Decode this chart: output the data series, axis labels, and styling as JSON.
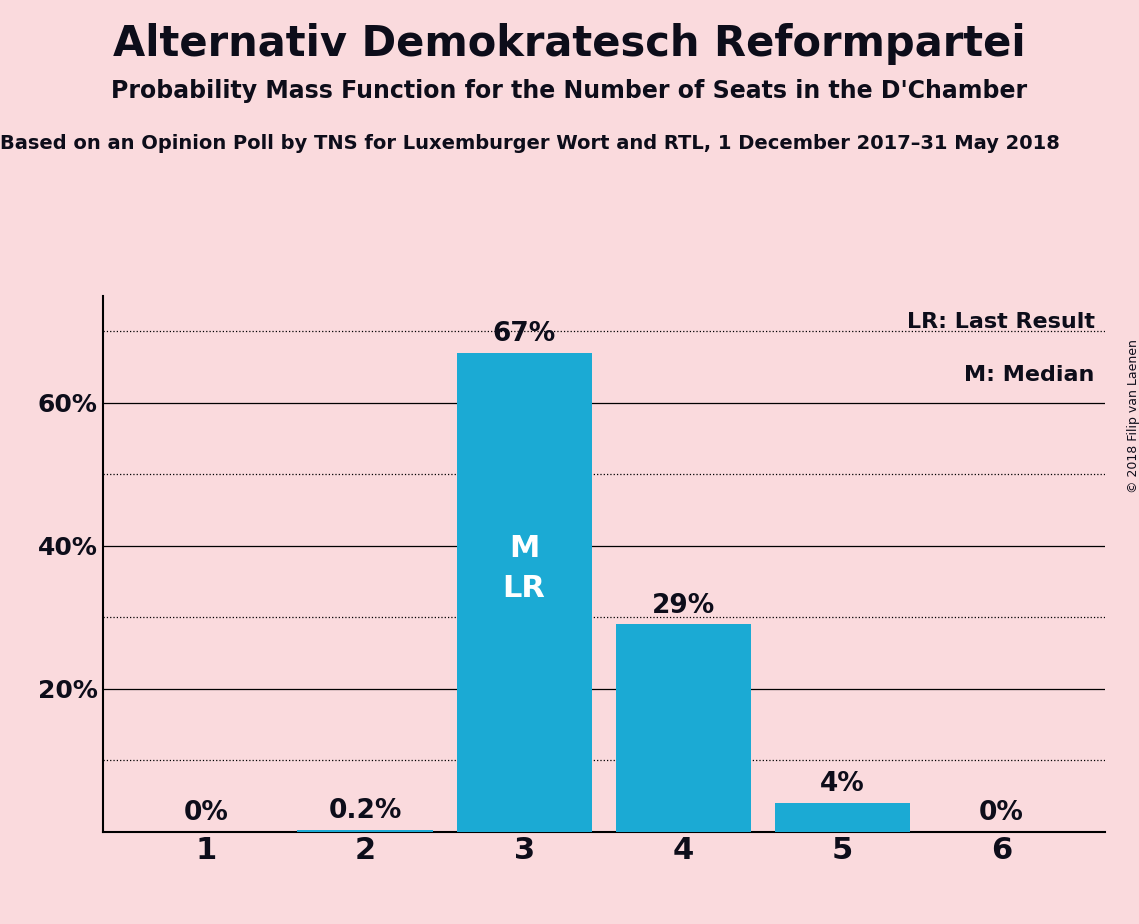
{
  "title": "Alternativ Demokratesch Reformpartei",
  "subtitle": "Probability Mass Function for the Number of Seats in the D'Chamber",
  "source_line": "Based on an Opinion Poll by TNS for Luxemburger Wort and RTL, 1 December 2017–31 May 2018",
  "copyright": "© 2018 Filip van Laenen",
  "categories": [
    1,
    2,
    3,
    4,
    5,
    6
  ],
  "values": [
    0.0,
    0.2,
    67.0,
    29.0,
    4.0,
    0.0
  ],
  "bar_labels": [
    "0%",
    "0.2%",
    "67%",
    "29%",
    "4%",
    "0%"
  ],
  "bar_color": "#1baad4",
  "background_color": "#fadadd",
  "label_inside_bar_index": 2,
  "label_inside_lines": [
    "M",
    "LR"
  ],
  "legend_text": [
    "LR: Last Result",
    "M: Median"
  ],
  "ylim": [
    0,
    75
  ],
  "yticks": [
    20,
    40,
    60
  ],
  "ytick_labels": [
    "20%",
    "40%",
    "60%"
  ],
  "solid_gridlines": [
    20,
    40,
    60
  ],
  "dotted_gridlines": [
    10,
    30,
    50,
    70
  ],
  "title_fontsize": 30,
  "subtitle_fontsize": 17,
  "source_fontsize": 14,
  "bar_label_fontsize": 19,
  "inside_label_fontsize": 22,
  "ytick_fontsize": 18,
  "xtick_fontsize": 22,
  "legend_fontsize": 16,
  "copyright_fontsize": 9
}
